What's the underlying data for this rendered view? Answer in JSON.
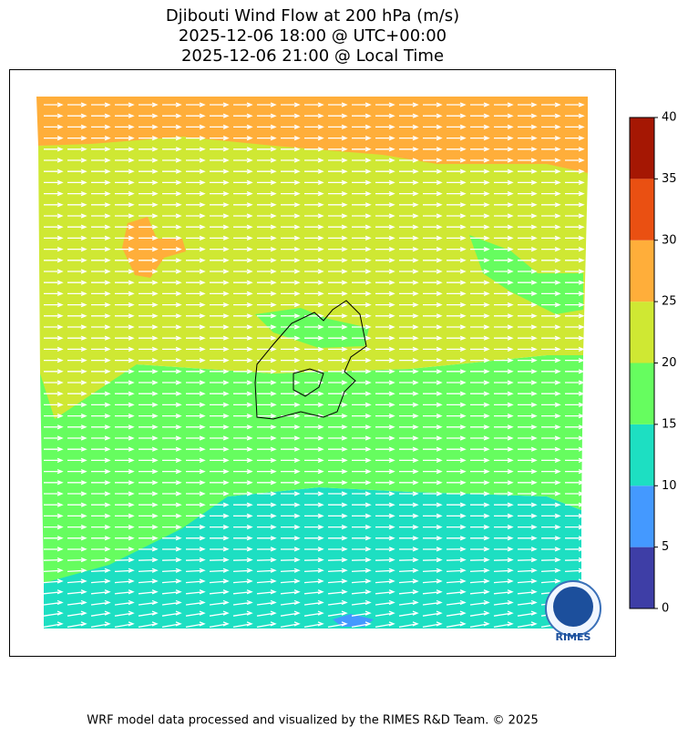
{
  "title": [
    "Djibouti Wind Flow at 200 hPa (m/s)",
    "2025-12-06 18:00 @ UTC+00:00",
    "2025-12-06 21:00 @ Local Time"
  ],
  "colorbar": {
    "ylim": [
      0,
      40
    ],
    "yticks": [
      0,
      5,
      10,
      15,
      20,
      25,
      30,
      35,
      40
    ],
    "colors": [
      "#3e3ea6",
      "#4499ff",
      "#1ddfc2",
      "#66fd5f",
      "#cfe833",
      "#ffae3a",
      "#ea5012",
      "#a51703"
    ]
  },
  "logo": "RIMES",
  "footer": "WRF model data processed and visualized by the RIMES R&D Team. © 2025"
}
